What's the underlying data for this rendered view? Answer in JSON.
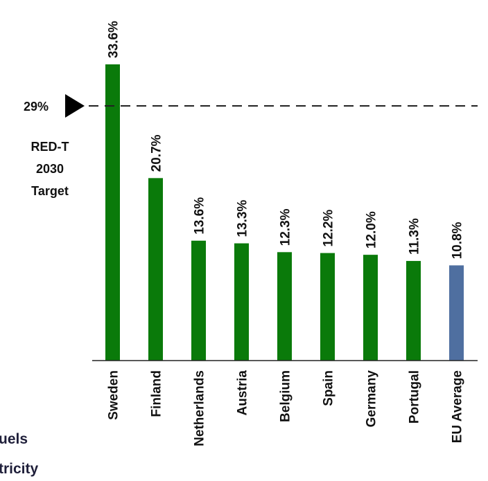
{
  "chart_data": {
    "type": "bar",
    "categories": [
      "Sweden",
      "Finland",
      "Netherlands",
      "Austria",
      "Belgium",
      "Spain",
      "Germany",
      "Portugal",
      "EU Average"
    ],
    "values": [
      33.6,
      20.7,
      13.6,
      13.3,
      12.3,
      12.2,
      12.0,
      11.3,
      10.8
    ],
    "value_labels": [
      "33.6%",
      "20.7%",
      "13.6%",
      "13.3%",
      "12.3%",
      "12.2%",
      "12.0%",
      "11.3%",
      "10.8%"
    ],
    "colors": [
      "#0a7a0a",
      "#0a7a0a",
      "#0a7a0a",
      "#0a7a0a",
      "#0a7a0a",
      "#0a7a0a",
      "#0a7a0a",
      "#0a7a0a",
      "#4f6fa0"
    ],
    "ylim": [
      0,
      33.6
    ],
    "reference_line": {
      "value": 29,
      "label": "29%",
      "caption": [
        "RED-T",
        "2030",
        "Target"
      ]
    },
    "legend_partial": [
      "uels",
      "tricity"
    ],
    "title": "",
    "xlabel": "",
    "ylabel": ""
  }
}
